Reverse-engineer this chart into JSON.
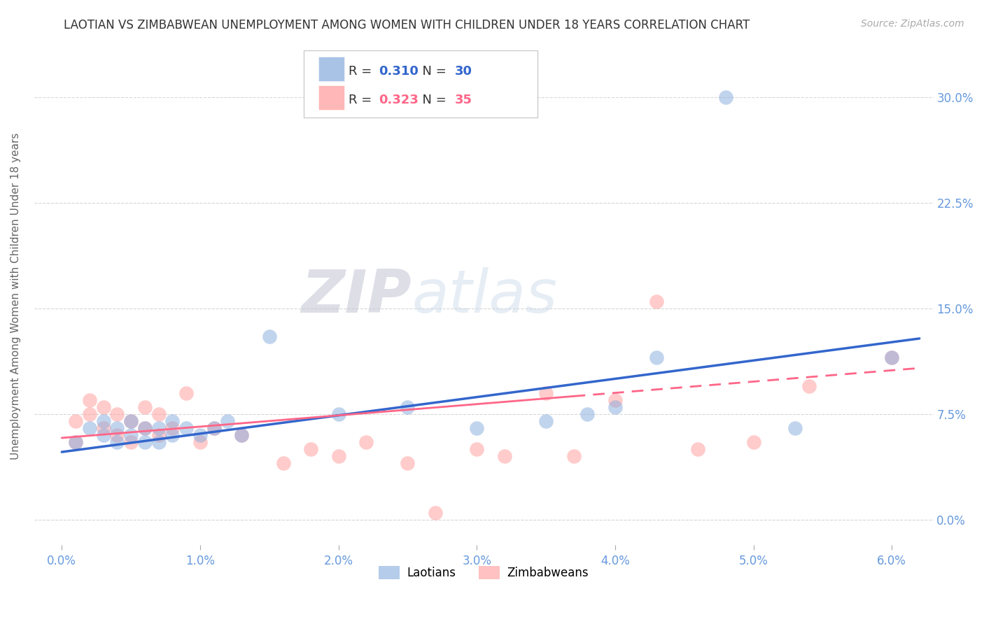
{
  "title": "LAOTIAN VS ZIMBABWEAN UNEMPLOYMENT AMONG WOMEN WITH CHILDREN UNDER 18 YEARS CORRELATION CHART",
  "source": "Source: ZipAtlas.com",
  "ylabel": "Unemployment Among Women with Children Under 18 years",
  "xlabel_ticks": [
    "0.0%",
    "1.0%",
    "2.0%",
    "3.0%",
    "4.0%",
    "5.0%",
    "6.0%"
  ],
  "ylabel_ticks": [
    "0.0%",
    "7.5%",
    "15.0%",
    "22.5%",
    "30.0%"
  ],
  "xlim": [
    -0.002,
    0.063
  ],
  "ylim": [
    -0.018,
    0.335
  ],
  "laotian_R": 0.31,
  "laotian_N": 30,
  "zimbabwean_R": 0.323,
  "zimbabwean_N": 35,
  "laotian_color": "#85AADD",
  "zimbabwean_color": "#FF9999",
  "laotian_line_color": "#3366CC",
  "zimbabwean_line_color": "#FF6688",
  "background_color": "#FFFFFF",
  "grid_color": "#CCCCCC",
  "title_color": "#333333",
  "axis_tick_color": "#6699DD",
  "watermark_color": "#DDDDEE",
  "laotian_x": [
    0.001,
    0.002,
    0.003,
    0.003,
    0.004,
    0.004,
    0.005,
    0.005,
    0.006,
    0.006,
    0.007,
    0.007,
    0.008,
    0.008,
    0.009,
    0.01,
    0.011,
    0.012,
    0.013,
    0.015,
    0.02,
    0.025,
    0.03,
    0.035,
    0.038,
    0.04,
    0.043,
    0.048,
    0.053,
    0.06
  ],
  "laotian_y": [
    0.055,
    0.065,
    0.06,
    0.07,
    0.055,
    0.065,
    0.06,
    0.07,
    0.055,
    0.065,
    0.055,
    0.065,
    0.06,
    0.07,
    0.065,
    0.06,
    0.065,
    0.07,
    0.06,
    0.13,
    0.075,
    0.08,
    0.065,
    0.07,
    0.075,
    0.08,
    0.115,
    0.3,
    0.065,
    0.115
  ],
  "zimbabwean_x": [
    0.001,
    0.001,
    0.002,
    0.002,
    0.003,
    0.003,
    0.004,
    0.004,
    0.005,
    0.005,
    0.006,
    0.006,
    0.007,
    0.007,
    0.008,
    0.009,
    0.01,
    0.011,
    0.013,
    0.016,
    0.018,
    0.02,
    0.022,
    0.025,
    0.027,
    0.03,
    0.032,
    0.035,
    0.037,
    0.04,
    0.043,
    0.046,
    0.05,
    0.054,
    0.06
  ],
  "zimbabwean_y": [
    0.07,
    0.055,
    0.075,
    0.085,
    0.065,
    0.08,
    0.06,
    0.075,
    0.055,
    0.07,
    0.065,
    0.08,
    0.06,
    0.075,
    0.065,
    0.09,
    0.055,
    0.065,
    0.06,
    0.04,
    0.05,
    0.045,
    0.055,
    0.04,
    0.005,
    0.05,
    0.045,
    0.09,
    0.045,
    0.085,
    0.155,
    0.05,
    0.055,
    0.095,
    0.115
  ],
  "x_tick_vals": [
    0.0,
    0.01,
    0.02,
    0.03,
    0.04,
    0.05,
    0.06
  ],
  "y_tick_vals": [
    0.0,
    0.075,
    0.15,
    0.225,
    0.3
  ]
}
